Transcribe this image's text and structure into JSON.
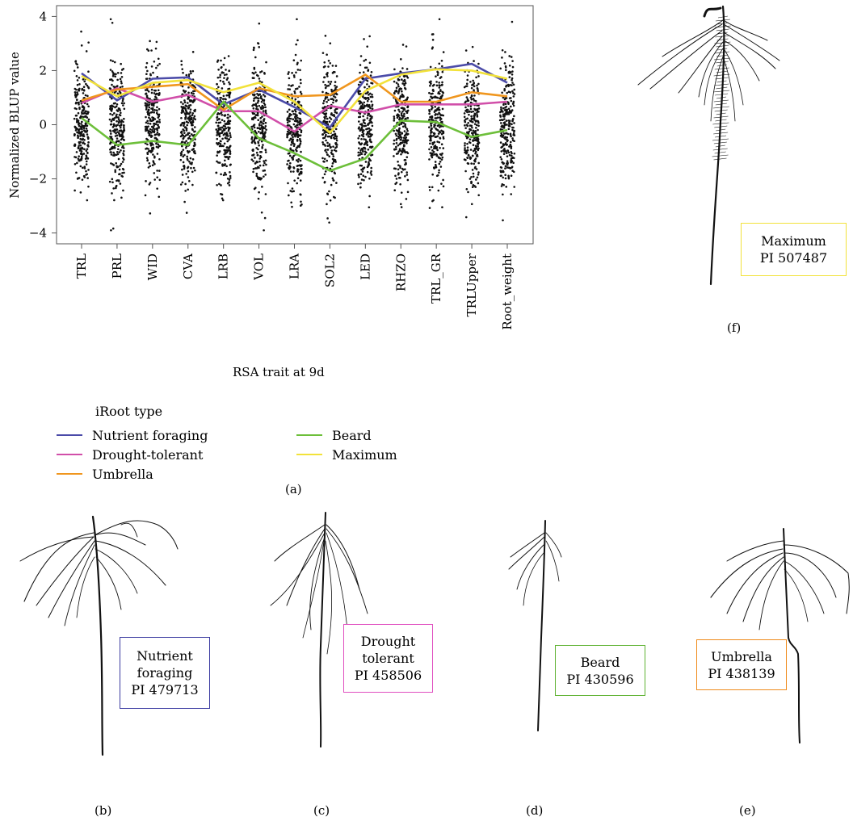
{
  "chart_data": {
    "type": "line",
    "categories": [
      "TRL",
      "PRL",
      "WID",
      "CVA",
      "LRB",
      "VOL",
      "LRA",
      "SOL2",
      "LED",
      "RHZO",
      "TRL_GR",
      "TRLUpper",
      "Root_weight"
    ],
    "xlabel": "RSA trait at 9d",
    "ylabel": "Normalized BLUP value",
    "ylim": [
      -4.4,
      4.4
    ],
    "yticks": [
      -4,
      -2,
      0,
      2,
      4
    ],
    "legend_title": "iRoot type",
    "series": [
      {
        "name": "Nutrient foraging",
        "color": "#4b4ba8",
        "values": [
          1.9,
          0.9,
          1.7,
          1.75,
          0.75,
          1.3,
          0.65,
          -0.1,
          1.7,
          1.9,
          2.05,
          2.25,
          1.55
        ]
      },
      {
        "name": "Drought-tolerant",
        "color": "#d14fa9",
        "values": [
          0.8,
          1.35,
          0.85,
          1.1,
          0.5,
          0.5,
          -0.25,
          0.7,
          0.45,
          0.75,
          0.75,
          0.75,
          0.85
        ]
      },
      {
        "name": "Umbrella",
        "color": "#f0961e",
        "values": [
          0.9,
          1.3,
          1.4,
          1.5,
          0.55,
          1.35,
          1.05,
          1.1,
          1.85,
          0.85,
          0.85,
          1.2,
          1.05
        ]
      },
      {
        "name": "Beard",
        "color": "#6dbf3a",
        "values": [
          0.25,
          -0.75,
          -0.6,
          -0.75,
          0.85,
          -0.5,
          -1.05,
          -1.7,
          -1.25,
          0.15,
          0.1,
          -0.45,
          -0.2
        ]
      },
      {
        "name": "Maximum",
        "color": "#f2e23a",
        "values": [
          1.8,
          1.05,
          1.55,
          1.65,
          1.2,
          1.55,
          0.85,
          -0.3,
          1.25,
          1.85,
          2.05,
          2.0,
          1.7
        ]
      }
    ],
    "grid": false
  },
  "figure": {
    "panel_labels": {
      "a": "(a)",
      "b": "(b)",
      "c": "(c)",
      "d": "(d)",
      "e": "(e)",
      "f": "(f)"
    },
    "boxes": {
      "b": {
        "lines": [
          "Nutrient",
          "foraging",
          "PI 479713"
        ],
        "color": "#3a3aa0"
      },
      "c": {
        "lines": [
          "Drought",
          "tolerant",
          "PI 458506"
        ],
        "color": "#e050c0"
      },
      "d": {
        "lines": [
          "Beard",
          "PI 430596"
        ],
        "color": "#5fb232"
      },
      "e": {
        "lines": [
          "Umbrella",
          "PI 438139"
        ],
        "color": "#ef8a1a"
      },
      "f": {
        "lines": [
          "Maximum",
          "PI 507487"
        ],
        "color": "#f2e23a"
      }
    }
  }
}
